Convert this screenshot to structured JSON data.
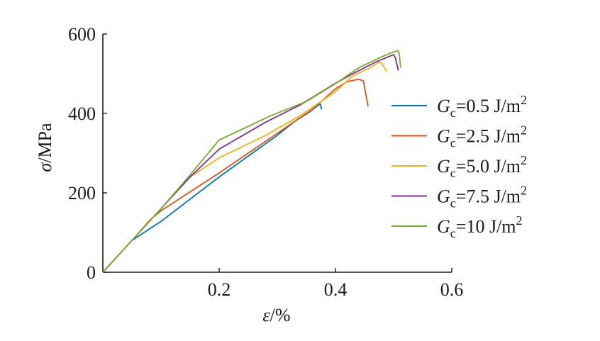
{
  "chart_data": {
    "type": "line",
    "title": "",
    "xlabel": {
      "symbol": "ε",
      "unit": "/%"
    },
    "ylabel": {
      "symbol": "σ",
      "unit": "/MPa"
    },
    "xlim": [
      0,
      0.6
    ],
    "ylim": [
      0,
      600
    ],
    "xticks": [
      {
        "value": 0.2,
        "label": "0.2"
      },
      {
        "value": 0.4,
        "label": "0.4"
      },
      {
        "value": 0.6,
        "label": "0.6"
      }
    ],
    "yticks": [
      {
        "value": 0,
        "label": "0"
      },
      {
        "value": 200,
        "label": "200"
      },
      {
        "value": 400,
        "label": "400"
      },
      {
        "value": 600,
        "label": "600"
      }
    ],
    "grid": false,
    "legend_position": "right",
    "series": [
      {
        "name": "G_c = 0.5 J/m²",
        "legend": {
          "var": "G",
          "sub": "c",
          "value": "=0.5 J/m",
          "sup": "2"
        },
        "color": "#0072BD",
        "points": [
          [
            0,
            0
          ],
          [
            0.05,
            80
          ],
          [
            0.1,
            128
          ],
          [
            0.2,
            240
          ],
          [
            0.3,
            345
          ],
          [
            0.33,
            380
          ],
          [
            0.355,
            403
          ],
          [
            0.368,
            418
          ],
          [
            0.374,
            424
          ],
          [
            0.376,
            410
          ]
        ]
      },
      {
        "name": "G_c = 2.5 J/m²",
        "legend": {
          "var": "G",
          "sub": "c",
          "value": "=2.5 J/m",
          "sup": "2"
        },
        "color": "#D95319",
        "points": [
          [
            0,
            0
          ],
          [
            0.05,
            80
          ],
          [
            0.08,
            130
          ],
          [
            0.1,
            155
          ],
          [
            0.2,
            250
          ],
          [
            0.3,
            350
          ],
          [
            0.36,
            410
          ],
          [
            0.4,
            462
          ],
          [
            0.42,
            480
          ],
          [
            0.44,
            486
          ],
          [
            0.448,
            482
          ],
          [
            0.456,
            418
          ]
        ]
      },
      {
        "name": "G_c = 5.0 J/m²",
        "legend": {
          "var": "G",
          "sub": "c",
          "value": "=5.0 J/m",
          "sup": "2"
        },
        "color": "#EDB120",
        "points": [
          [
            0,
            0
          ],
          [
            0.05,
            80
          ],
          [
            0.1,
            160
          ],
          [
            0.15,
            240
          ],
          [
            0.2,
            288
          ],
          [
            0.28,
            345
          ],
          [
            0.34,
            395
          ],
          [
            0.4,
            455
          ],
          [
            0.43,
            495
          ],
          [
            0.46,
            515
          ],
          [
            0.475,
            530
          ],
          [
            0.48,
            526
          ],
          [
            0.488,
            505
          ]
        ]
      },
      {
        "name": "G_c = 7.5 J/m²",
        "legend": {
          "var": "G",
          "sub": "c",
          "value": "=7.5 J/m",
          "sup": "2"
        },
        "color": "#7E2F8E",
        "points": [
          [
            0,
            0
          ],
          [
            0.05,
            80
          ],
          [
            0.1,
            160
          ],
          [
            0.15,
            240
          ],
          [
            0.2,
            310
          ],
          [
            0.28,
            378
          ],
          [
            0.34,
            422
          ],
          [
            0.4,
            476
          ],
          [
            0.43,
            500
          ],
          [
            0.47,
            530
          ],
          [
            0.5,
            548
          ],
          [
            0.503,
            540
          ],
          [
            0.508,
            508
          ]
        ]
      },
      {
        "name": "G_c = 10 J/m²",
        "legend": {
          "var": "G",
          "sub": "c",
          "value": "=10 J/m",
          "sup": "2"
        },
        "color": "#77AC30",
        "points": [
          [
            0,
            0
          ],
          [
            0.05,
            80
          ],
          [
            0.1,
            160
          ],
          [
            0.15,
            245
          ],
          [
            0.2,
            333
          ],
          [
            0.29,
            395
          ],
          [
            0.35,
            430
          ],
          [
            0.4,
            475
          ],
          [
            0.44,
            515
          ],
          [
            0.48,
            543
          ],
          [
            0.5,
            555
          ],
          [
            0.508,
            558
          ],
          [
            0.51,
            548
          ],
          [
            0.512,
            515
          ]
        ]
      }
    ]
  }
}
